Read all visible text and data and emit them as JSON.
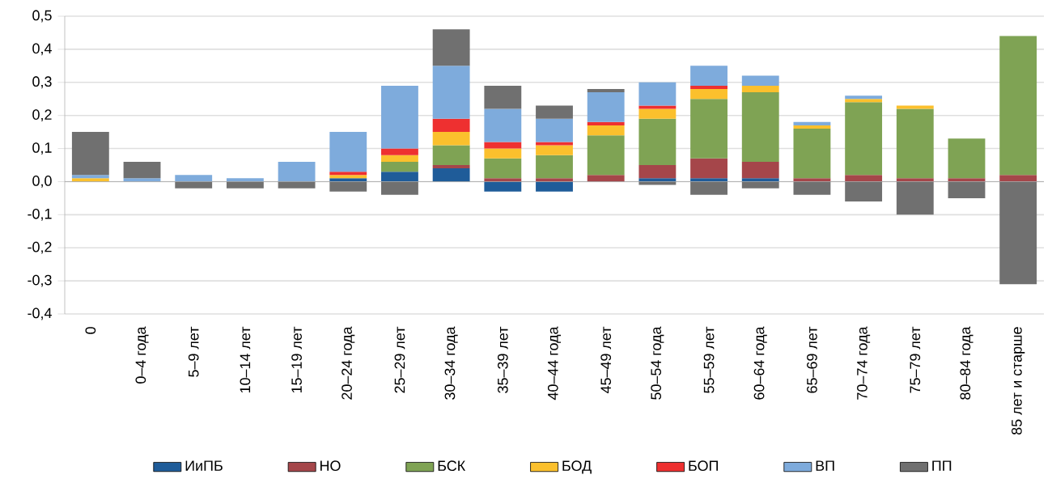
{
  "chart_data": {
    "type": "bar",
    "stacked": true,
    "categories": [
      "0",
      "0–4 года",
      "5–9 лет",
      "10–14 лет",
      "15–19 лет",
      "20–24 года",
      "25–29 лет",
      "30–34 года",
      "35–39 лет",
      "40–44 года",
      "45–49 лет",
      "50–54 года",
      "55–59 лет",
      "60–64 года",
      "65–69 лет",
      "70–74 года",
      "75–79 лет",
      "80–84 года",
      "85 лет и старше"
    ],
    "series": [
      {
        "name": "ИиПБ",
        "color": "#1f5c99",
        "values": [
          0,
          0,
          0,
          0,
          0,
          0.01,
          0.03,
          0.04,
          -0.03,
          -0.03,
          0,
          0.01,
          0.01,
          0.01,
          0,
          0,
          0,
          0,
          0
        ]
      },
      {
        "name": "НО",
        "color": "#a5464a",
        "values": [
          0,
          0,
          0,
          0,
          0,
          0,
          0,
          0.01,
          0.01,
          0.01,
          0.02,
          0.04,
          0.06,
          0.05,
          0.01,
          0.02,
          0.01,
          0.01,
          0.02
        ]
      },
      {
        "name": "БСК",
        "color": "#7fa354",
        "values": [
          0,
          0,
          0,
          0,
          0,
          0,
          0.03,
          0.06,
          0.06,
          0.07,
          0.12,
          0.14,
          0.18,
          0.21,
          0.15,
          0.22,
          0.21,
          0.12,
          0.42
        ]
      },
      {
        "name": "БОД",
        "color": "#fbc02d",
        "values": [
          0.01,
          0,
          0,
          0,
          0,
          0.01,
          0.02,
          0.04,
          0.03,
          0.03,
          0.03,
          0.03,
          0.03,
          0.02,
          0.01,
          0.01,
          0.01,
          0,
          0
        ]
      },
      {
        "name": "БОП",
        "color": "#ee3030",
        "values": [
          0,
          0,
          0,
          0,
          0,
          0.01,
          0.02,
          0.04,
          0.02,
          0.01,
          0.01,
          0.01,
          0.01,
          0,
          0,
          0,
          0,
          0,
          0
        ]
      },
      {
        "name": "ВП",
        "color": "#7eabdc",
        "values": [
          0.01,
          0.01,
          0.02,
          0.01,
          0.06,
          0.12,
          0.19,
          0.16,
          0.1,
          0.07,
          0.09,
          0.07,
          0.06,
          0.03,
          0.01,
          0.01,
          0,
          0,
          0
        ]
      },
      {
        "name": "ПП",
        "color": "#707070",
        "values": [
          0.13,
          0.05,
          -0.02,
          -0.02,
          -0.02,
          -0.03,
          -0.04,
          0.11,
          0.07,
          0.04,
          0.01,
          -0.01,
          -0.04,
          -0.02,
          -0.04,
          -0.06,
          -0.1,
          -0.05,
          -0.31
        ]
      }
    ],
    "ylim": [
      -0.4,
      0.5
    ],
    "yticks": [
      {
        "value": -0.4,
        "label": "-0,4"
      },
      {
        "value": -0.3,
        "label": "-0,3"
      },
      {
        "value": -0.2,
        "label": "-0,2"
      },
      {
        "value": -0.1,
        "label": "-0,1"
      },
      {
        "value": 0,
        "label": "0,0"
      },
      {
        "value": 0.1,
        "label": "0,1"
      },
      {
        "value": 0.2,
        "label": "0,2"
      },
      {
        "value": 0.3,
        "label": "0,3"
      },
      {
        "value": 0.4,
        "label": "0,4"
      },
      {
        "value": 0.5,
        "label": "0,5"
      }
    ],
    "grid": "y",
    "legend": "bottom"
  }
}
